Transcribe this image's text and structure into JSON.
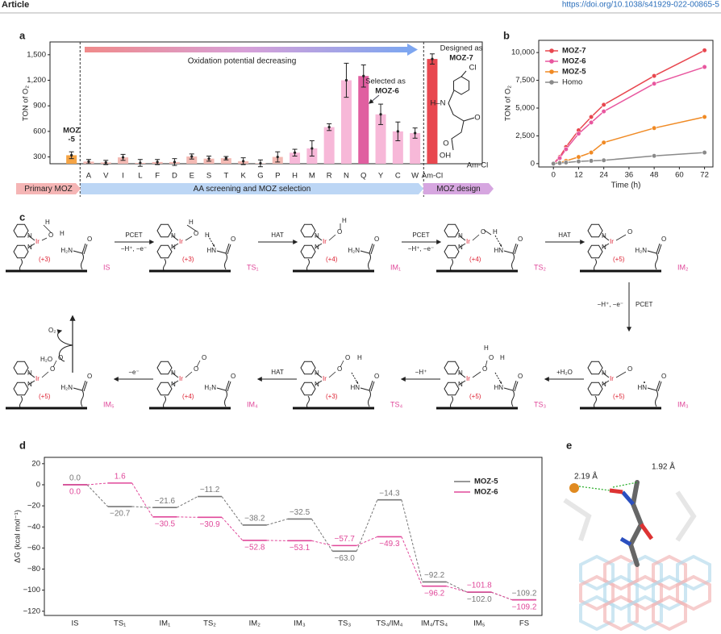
{
  "header": {
    "journal": "Article",
    "doi": "https://doi.org/10.1038/s41929-022-00865-5"
  },
  "chart_data": [
    {
      "panel": "a",
      "type": "bar",
      "ylabel": "TON of O₂",
      "categories": [
        null,
        "A",
        "V",
        "I",
        "L",
        "F",
        "D",
        "E",
        "S",
        "T",
        "K",
        "G",
        "P",
        "H",
        "M",
        "R",
        "N",
        "Q",
        "Y",
        "C",
        "W",
        "Am-Cl"
      ],
      "values": [
        320,
        245,
        235,
        295,
        230,
        240,
        240,
        305,
        280,
        285,
        250,
        225,
        300,
        350,
        400,
        650,
        1200,
        1250,
        800,
        600,
        580,
        1450
      ],
      "errors": [
        40,
        25,
        25,
        35,
        40,
        30,
        40,
        30,
        30,
        20,
        40,
        40,
        60,
        40,
        90,
        40,
        200,
        130,
        120,
        110,
        60,
        60
      ],
      "colors": [
        "#f5a445",
        "#f3b9b3",
        "#f3b9b3",
        "#f3b9b3",
        "#f3b9b3",
        "#f3b9b3",
        "#f3b9b3",
        "#f3b9b3",
        "#f3b9b3",
        "#f3b9b3",
        "#f3b9b3",
        "#f3b9b3",
        "#f3b9b3",
        "#f7b8d8",
        "#f7b8d8",
        "#f7b8d8",
        "#f7b8d8",
        "#e05fa0",
        "#f7b8d8",
        "#f7b8d8",
        "#f7b8d8",
        "#e8474f"
      ],
      "ylim": [
        220,
        1650
      ],
      "yticks": [
        300,
        600,
        900,
        {
          "value": 1200,
          "label": "1,200"
        },
        {
          "value": 1500,
          "label": "1,500"
        }
      ],
      "bar_note": [
        "MOZ",
        "-5"
      ],
      "trend": "Oxidation potential decreasing",
      "selected": [
        "Selected as",
        "MOZ-6"
      ],
      "designed": [
        "Designed as",
        "MOZ-7"
      ],
      "molecule": [
        "Cl",
        "H–N",
        "O",
        "O",
        "OH",
        "Am-Cl"
      ],
      "stages": [
        "Primary MOZ",
        "AA screening and MOZ selection",
        "MOZ design"
      ]
    },
    {
      "panel": "b",
      "type": "line",
      "xlabel": "Time (h)",
      "ylabel": "TON of O₂",
      "x": [
        0,
        3,
        6,
        12,
        18,
        24,
        48,
        72
      ],
      "series": [
        {
          "name": "MOZ-7",
          "color": "#e8474f",
          "values": [
            0,
            600,
            1500,
            3000,
            4200,
            5300,
            7900,
            10200
          ]
        },
        {
          "name": "MOZ-6",
          "color": "#e8579f",
          "values": [
            0,
            500,
            1300,
            2700,
            3700,
            4700,
            7200,
            8700
          ]
        },
        {
          "name": "MOZ-5",
          "color": "#f08a24",
          "values": [
            0,
            100,
            250,
            600,
            1000,
            1900,
            3200,
            4200
          ]
        },
        {
          "name": "Homo",
          "color": "#8a8a8a",
          "values": [
            0,
            50,
            100,
            200,
            250,
            300,
            700,
            1000
          ]
        }
      ],
      "xlim": [
        -7,
        76
      ],
      "xticks": [
        0,
        12,
        24,
        36,
        48,
        60,
        72
      ],
      "ylim": [
        -300,
        11100
      ],
      "yticks": [
        0,
        {
          "value": 2500,
          "label": "2,500"
        },
        {
          "value": 5000,
          "label": "5,000"
        },
        {
          "value": 7500,
          "label": "7,500"
        },
        {
          "value": 10000,
          "label": "10,000"
        }
      ],
      "legend": "top-left"
    },
    {
      "panel": "d",
      "type": "energy",
      "ylabel": "ΔG (kcal mol⁻¹)",
      "categories": [
        "IS",
        "TS₁",
        "IM₁",
        "TS₂",
        "IM₂",
        "IM₃",
        "TS₃",
        "TS₄/IM₄",
        "IM₄/TS₄",
        "IM₅",
        "FS"
      ],
      "series": [
        {
          "name": "MOZ-5",
          "color": "#777777",
          "values": [
            0.0,
            -20.7,
            -21.6,
            -11.2,
            -38.2,
            -32.5,
            -63.0,
            -14.3,
            -92.2,
            -102.0,
            -109.2
          ],
          "value_labels": [
            "0.0",
            "−20.7",
            "−21.6",
            "−11.2",
            "−38.2",
            "−32.5",
            "−63.0",
            "−14.3",
            "−92.2",
            "−102.0",
            "−109.2"
          ]
        },
        {
          "name": "MOZ-6",
          "color": "#e0489a",
          "values": [
            0.0,
            1.6,
            -30.5,
            -30.9,
            -52.8,
            -53.1,
            -57.7,
            -49.3,
            -96.2,
            -101.8,
            -109.2
          ],
          "value_labels": [
            "0.0",
            "1.6",
            "−30.5",
            "−30.9",
            "−52.8",
            "−53.1",
            "−57.7",
            "−49.3",
            "−96.2",
            "−101.8",
            "−109.2"
          ]
        }
      ],
      "ylim": [
        -124,
        26
      ],
      "yticks": [
        20,
        0,
        {
          "value": -20,
          "label": "−20"
        },
        {
          "value": -40,
          "label": "−40"
        },
        {
          "value": -60,
          "label": "−60"
        },
        {
          "value": -80,
          "label": "−80"
        },
        {
          "value": -100,
          "label": "−100"
        },
        {
          "value": -120,
          "label": "−120"
        }
      ],
      "legend": "top-right"
    }
  ],
  "scheme": {
    "panel": "c",
    "glyphs": {
      "n": "N",
      "ir": "Ir",
      "o": "O",
      "h": "H",
      "amine": "H₂N",
      "imine": "HN"
    },
    "species": [
      {
        "label": "IS",
        "ox": "(+3)"
      },
      {
        "label": "TS₁",
        "ox": "(+3)"
      },
      {
        "label": "IM₁",
        "ox": "(+4)"
      },
      {
        "label": "TS₂",
        "ox": "(+4)"
      },
      {
        "label": "IM₂",
        "ox": "(+5)"
      },
      {
        "label": "IM₃",
        "ox": "(+5)"
      },
      {
        "label": "TS₃",
        "ox": "(+5)"
      },
      {
        "label": "TS₄",
        "ox": "(+3)"
      },
      {
        "label": "IM₄",
        "ox": "(+4)"
      },
      {
        "label": "IM₅",
        "ox": "(+5)"
      }
    ],
    "steps": [
      {
        "name": "PCET",
        "detail": "−H⁺, −e⁻"
      },
      {
        "name": "HAT"
      },
      {
        "name": "PCET",
        "detail": "−H⁺, −e⁻"
      },
      {
        "name": "HAT"
      },
      {
        "name": "PCET",
        "detail": "−H⁺, −e⁻"
      },
      {
        "name": "+H₂O"
      },
      {
        "name": "−H⁺"
      },
      {
        "name": "HAT"
      },
      {
        "name": "−e⁻"
      }
    ],
    "cycle": {
      "out": "O₂",
      "in": "H₂O"
    }
  },
  "structure": {
    "panel": "e",
    "distances": [
      "2.19 Å",
      "1.92 Å"
    ]
  }
}
